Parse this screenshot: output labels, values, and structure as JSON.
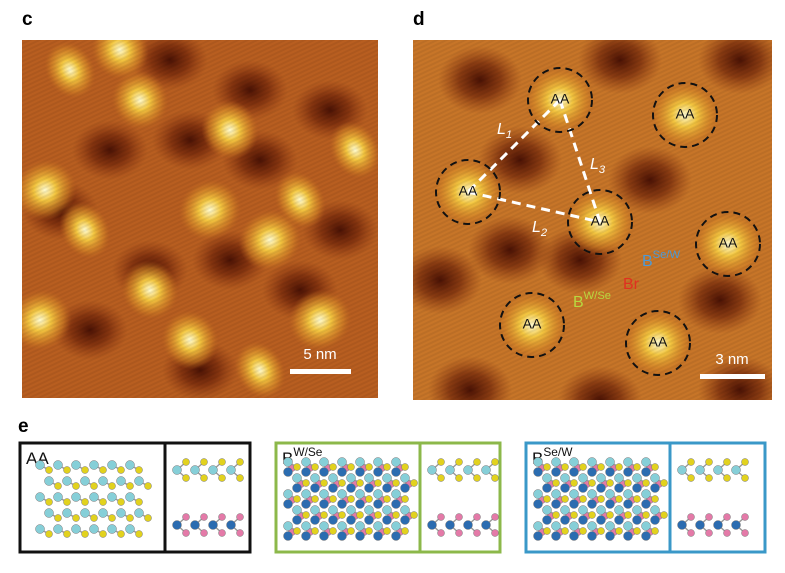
{
  "panel_c": {
    "label": "c",
    "scale_bar": "5 nm"
  },
  "panel_d": {
    "label": "d",
    "scale_bar": "3 nm",
    "aa_labels": [
      "AA",
      "AA",
      "AA",
      "AA",
      "AA",
      "AA",
      "AA"
    ],
    "l1": {
      "main": "L",
      "sub": "1"
    },
    "l2": {
      "main": "L",
      "sub": "2"
    },
    "l3": {
      "main": "L",
      "sub": "3"
    },
    "b_se_w": {
      "main": "B",
      "sup": "Se/W"
    },
    "br": "Br",
    "b_w_se": {
      "main": "B",
      "sup": "W/Se"
    }
  },
  "panel_e": {
    "label": "e",
    "boxes": [
      {
        "main": "AA"
      },
      {
        "main": "B",
        "sup": "W/Se"
      },
      {
        "main": "B",
        "sup": "Se/W"
      }
    ]
  }
}
